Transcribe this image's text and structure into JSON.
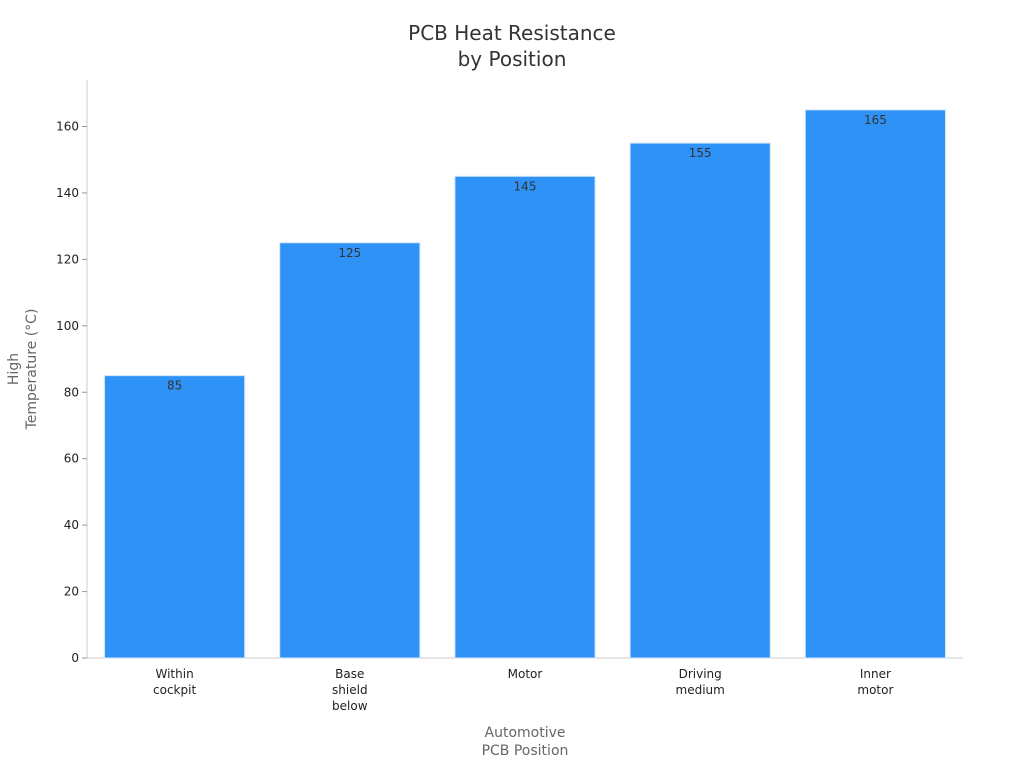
{
  "chart_data": {
    "type": "bar",
    "title": "PCB Heat Resistance\nby Position",
    "x_label": "Automotive\nPCB Position",
    "y_label": "High\nTemperature (°C)",
    "categories": [
      "Within\ncockpit",
      "Base\nshield\nbelow",
      "Motor",
      "Driving\nmedium",
      "Inner\nmotor"
    ],
    "values": [
      85,
      125,
      145,
      155,
      165
    ],
    "color": "#2f92f7",
    "ylim": [
      0,
      174
    ],
    "yticks": [
      0,
      20,
      40,
      60,
      80,
      100,
      120,
      140,
      160
    ],
    "grid": false
  }
}
